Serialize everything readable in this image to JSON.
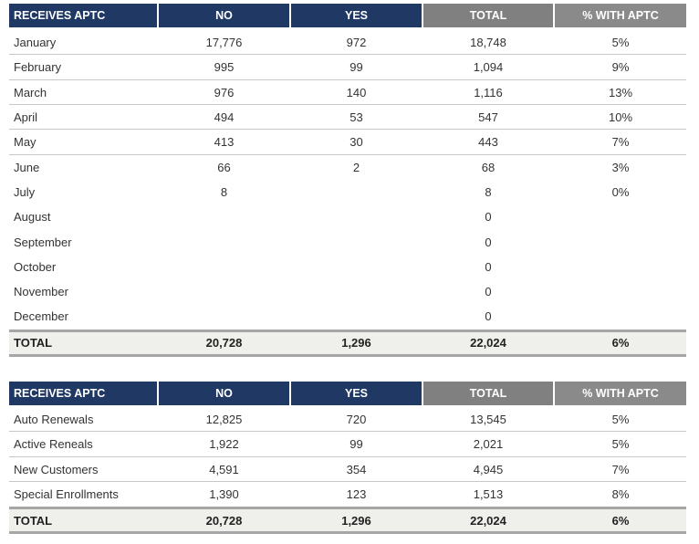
{
  "tables": [
    {
      "header": [
        "RECEIVES APTC",
        "NO",
        "YES",
        "TOTAL",
        "% WITH APTC"
      ],
      "rows": [
        [
          "January",
          "17,776",
          "972",
          "18,748",
          "5%"
        ],
        [
          "February",
          "995",
          "99",
          "1,094",
          "9%"
        ],
        [
          "March",
          "976",
          "140",
          "1,116",
          "13%"
        ],
        [
          "April",
          "494",
          "53",
          "547",
          "10%"
        ],
        [
          "May",
          "413",
          "30",
          "443",
          "7%"
        ],
        [
          "June",
          "66",
          "2",
          "68",
          "3%"
        ],
        [
          "July",
          "8",
          null,
          "8",
          "0%"
        ],
        [
          "August",
          null,
          null,
          "0",
          null
        ],
        [
          "September",
          null,
          null,
          "0",
          null
        ],
        [
          "October",
          null,
          null,
          "0",
          null
        ],
        [
          "November",
          null,
          null,
          "0",
          null
        ],
        [
          "December",
          null,
          null,
          "0",
          null
        ]
      ],
      "total": [
        "TOTAL",
        "20,728",
        "1,296",
        "22,024",
        "6%"
      ]
    },
    {
      "header": [
        "RECEIVES APTC",
        "NO",
        "YES",
        "TOTAL",
        "% WITH APTC"
      ],
      "rows": [
        [
          "Auto Renewals",
          "12,825",
          "720",
          "13,545",
          "5%"
        ],
        [
          "Active Reneals",
          "1,922",
          "99",
          "2,021",
          "5%"
        ],
        [
          "New Customers",
          "4,591",
          "354",
          "4,945",
          "7%"
        ],
        [
          "Special Enrollments",
          "1,390",
          "123",
          "1,513",
          "8%"
        ]
      ],
      "total": [
        "TOTAL",
        "20,728",
        "1,296",
        "22,024",
        "6%"
      ]
    }
  ]
}
